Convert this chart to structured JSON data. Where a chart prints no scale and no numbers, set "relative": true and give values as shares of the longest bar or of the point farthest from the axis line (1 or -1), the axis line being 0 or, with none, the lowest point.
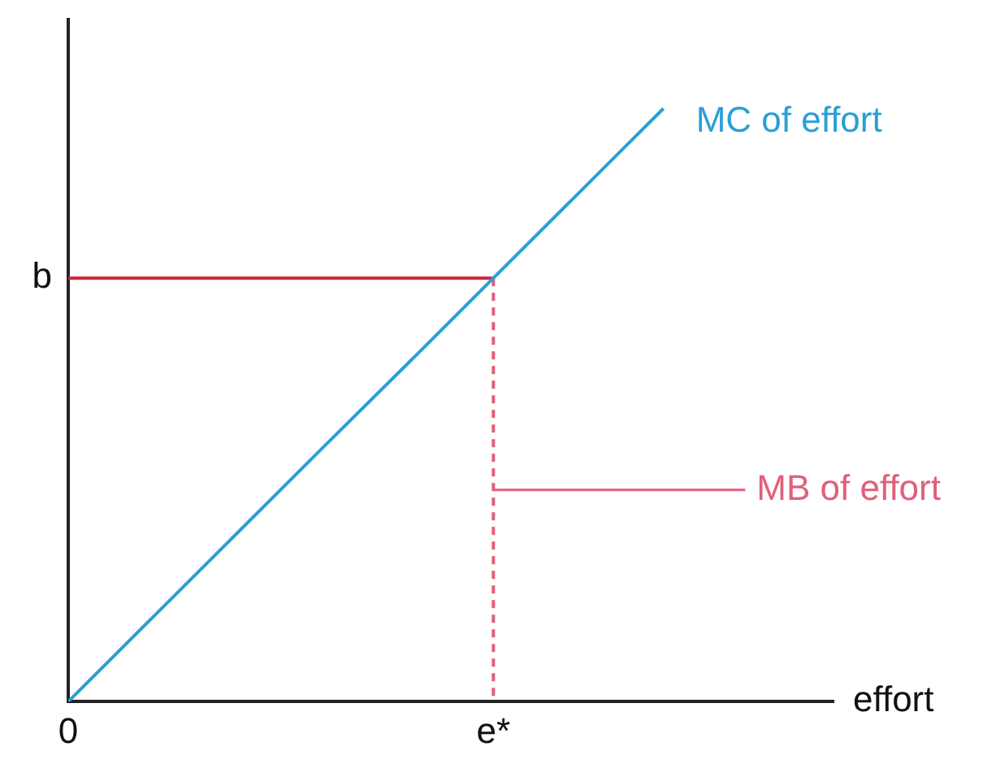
{
  "chart_data": {
    "type": "line",
    "relative": true,
    "xlabel": "effort",
    "categories": [
      "0",
      null,
      null,
      null,
      null,
      "e*",
      null,
      null,
      null,
      null
    ],
    "grid": false,
    "legend": false,
    "marker": "none",
    "series": [
      {
        "name": "MC of effort",
        "color": "#2a9fd6",
        "values": [
          0,
          0.143,
          0.286,
          0.429,
          0.571,
          0.714,
          0.857,
          1,
          null,
          null
        ]
      },
      {
        "color": "#c8283c",
        "x": [
          "0",
          "e*"
        ],
        "values": [
          0.714,
          0.714
        ]
      },
      {
        "name": "MB of effort",
        "color": "#e0607a",
        "line_style": "dashed",
        "x": [
          "e*",
          "e*"
        ],
        "values": [
          0.714,
          0
        ]
      }
    ],
    "annotations": [
      {
        "text": "b",
        "x": "0",
        "y": 0.714
      }
    ]
  }
}
